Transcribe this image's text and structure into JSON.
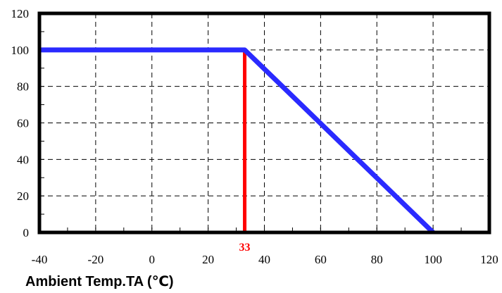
{
  "chart_data": {
    "type": "line",
    "title": "",
    "xlabel": "Ambient Temp.TA (℃)",
    "ylabel": "",
    "xlim": [
      -40,
      120
    ],
    "ylim": [
      0,
      120
    ],
    "x_ticks": [
      -40,
      -20,
      0,
      20,
      40,
      60,
      80,
      100,
      120
    ],
    "x_tick_labels": [
      "-40",
      "-20",
      "0",
      "20",
      "40",
      "60",
      "80",
      "100",
      "120"
    ],
    "y_ticks": [
      0,
      20,
      40,
      60,
      80,
      100,
      120
    ],
    "y_tick_labels": [
      "0",
      "20",
      "40",
      "60",
      "80",
      "100",
      "120"
    ],
    "grid": "dashed",
    "series": [
      {
        "x": [
          -40,
          33,
          100
        ],
        "y": [
          100,
          100,
          0
        ]
      }
    ],
    "marker": {
      "x": 33,
      "label": "33"
    },
    "colors": {
      "series": "#2a2aff",
      "marker": "#ff0000",
      "frame": "#000000",
      "grid": "#000000"
    }
  }
}
